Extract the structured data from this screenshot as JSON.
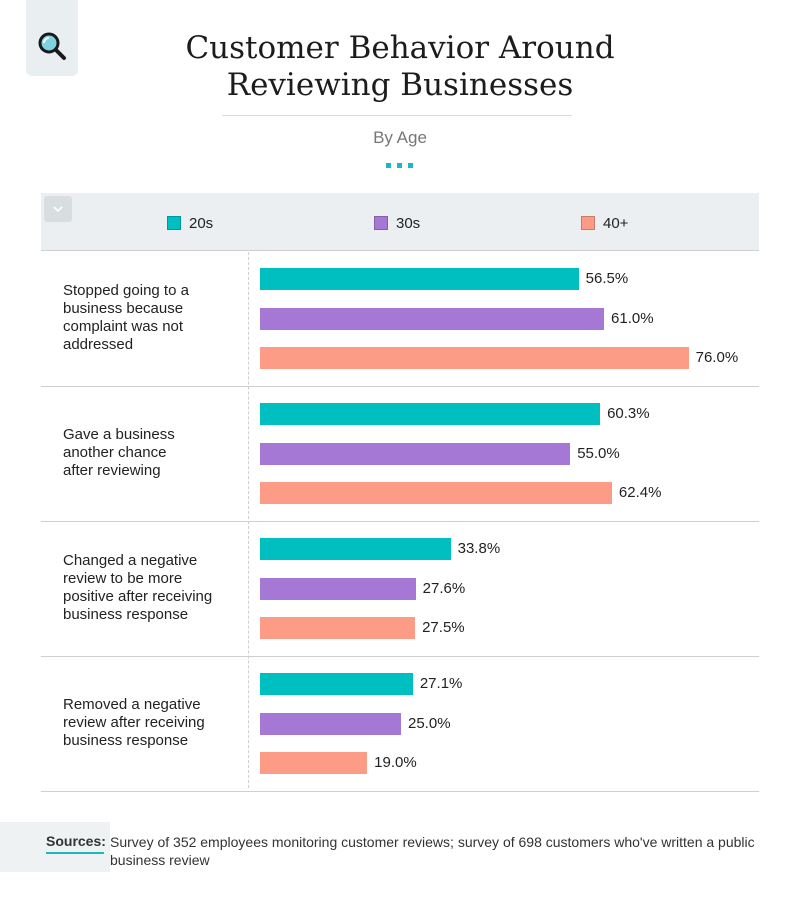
{
  "header": {
    "title_lines": [
      "Customer Behavior Around",
      "Reviewing Businesses"
    ],
    "subtitle": "By Age"
  },
  "icons": {
    "logo": "magnifier-icon",
    "collapse": "chevron-down-icon"
  },
  "colors": {
    "accent": "#1ab9bf",
    "series_20s": "#00bfc0",
    "series_30s": "#a678d6",
    "series_40": "#fd9c86"
  },
  "chart_data": {
    "type": "bar",
    "orientation": "horizontal",
    "title": "Customer Behavior Around Reviewing Businesses",
    "subtitle": "By Age",
    "categories": [
      "Stopped going to a business because complaint was not addressed",
      "Gave a business another chance after reviewing",
      "Changed a negative review to be more positive after receiving business response",
      "Removed a negative review after receiving business response"
    ],
    "series": [
      {
        "name": "20s",
        "color": "#00bfc0",
        "values": [
          56.5,
          60.3,
          33.8,
          27.1
        ],
        "labels": [
          "56.5%",
          "60.3%",
          "33.8%",
          "27.1%"
        ]
      },
      {
        "name": "30s",
        "color": "#a678d6",
        "values": [
          61.0,
          55.0,
          27.6,
          25.0
        ],
        "labels": [
          "61.0%",
          "55.0%",
          "27.6%",
          "25.0%"
        ]
      },
      {
        "name": "40+",
        "color": "#fd9c86",
        "values": [
          76.0,
          62.4,
          27.5,
          19.0
        ],
        "labels": [
          "76.0%",
          "62.4%",
          "27.5%",
          "19.0%"
        ]
      }
    ],
    "value_unit": "%",
    "xlim": [
      0,
      100
    ],
    "grid": false,
    "legend_position": "top"
  },
  "category_label_lines": [
    [
      "Stopped going to a",
      "business because",
      "complaint was not",
      "addressed"
    ],
    [
      "Gave a business",
      "another chance",
      "after reviewing"
    ],
    [
      "Changed a negative",
      "review to be more",
      "positive after receiving",
      "business response"
    ],
    [
      "Removed a negative",
      "review after receiving",
      "business response"
    ]
  ],
  "sources": {
    "label": "Sources:",
    "text": "Survey of 352 employees monitoring customer reviews; survey of 698 customers who've written a public business review"
  }
}
